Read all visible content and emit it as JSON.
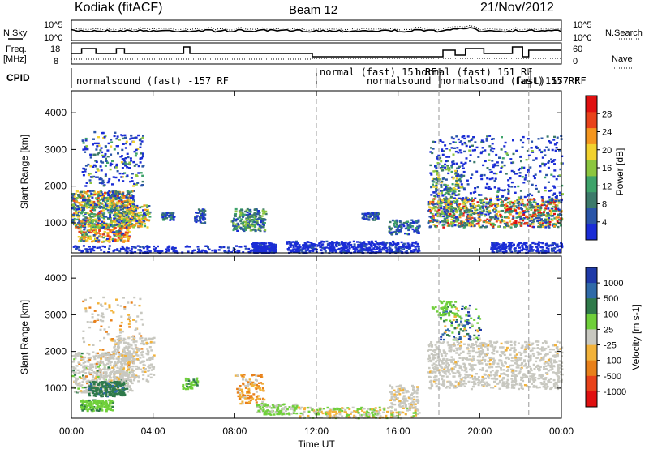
{
  "header": {
    "station": "Kodiak (fitACF)",
    "beam": "Beam 12",
    "date": "21/Nov/2012"
  },
  "top_panels": {
    "nsky_label": "N.Sky",
    "nsearch_label": "N.Search",
    "noise_ticks": [
      "10^5",
      "10^0"
    ],
    "freq_label_1": "Freq.",
    "freq_label_2": "[MHz]",
    "freq_ticks": [
      "18",
      "8"
    ],
    "nave_ticks": [
      "60",
      "0"
    ],
    "nave_label": "Nave",
    "cpid_label": "CPID",
    "cpid_segments": [
      {
        "text": "normalsound (fast) -157 RF"
      },
      {
        "text": "normal (fast) 151 RF"
      },
      {
        "text": "normalsound"
      },
      {
        "text": "normal (fast) 151 RF"
      },
      {
        "text": "normalsound (fast) 157 RF"
      },
      {
        "text": "fast)"
      },
      {
        "text": "157 RF"
      }
    ]
  },
  "x_axis": {
    "label": "Time UT",
    "ticks": [
      "00:00",
      "04:00",
      "08:00",
      "12:00",
      "16:00",
      "20:00",
      "00:00"
    ],
    "hours": [
      0,
      4,
      8,
      12,
      16,
      20,
      24
    ]
  },
  "colors": {
    "power": [
      "#1a2cd6",
      "#2a55a8",
      "#3c7a6a",
      "#3ea36a",
      "#8cc63f",
      "#f2d22e",
      "#f4961f",
      "#e8421a",
      "#e01010"
    ],
    "velocity": [
      "#1f3aa8",
      "#2f6aa8",
      "#2f7a4a",
      "#6fcf3a",
      "#c8c8c0",
      "#f2b23a",
      "#e8801a",
      "#e8421a",
      "#e01010"
    ]
  },
  "chart_data": [
    {
      "type": "heatmap",
      "title": "Power",
      "ylabel": "Slant Range [km]",
      "xlabel": "Time UT",
      "ylim": [
        180,
        4600
      ],
      "xlim": [
        0,
        24
      ],
      "yticks": [
        1000,
        2000,
        3000,
        4000
      ],
      "colorbar": {
        "label": "Power [dB]",
        "ticks": [
          4,
          8,
          12,
          16,
          20,
          24,
          28
        ],
        "range": [
          0,
          32
        ]
      }
    },
    {
      "type": "heatmap",
      "title": "Velocity",
      "ylabel": "Slant Range [km]",
      "xlabel": "Time UT",
      "ylim": [
        180,
        4600
      ],
      "xlim": [
        0,
        24
      ],
      "yticks": [
        1000,
        2000,
        3000,
        4000
      ],
      "colorbar": {
        "label": "Velocity [m s-1]",
        "ticks": [
          1000,
          500,
          100,
          25,
          -25,
          -100,
          -500,
          -1000
        ]
      }
    }
  ]
}
